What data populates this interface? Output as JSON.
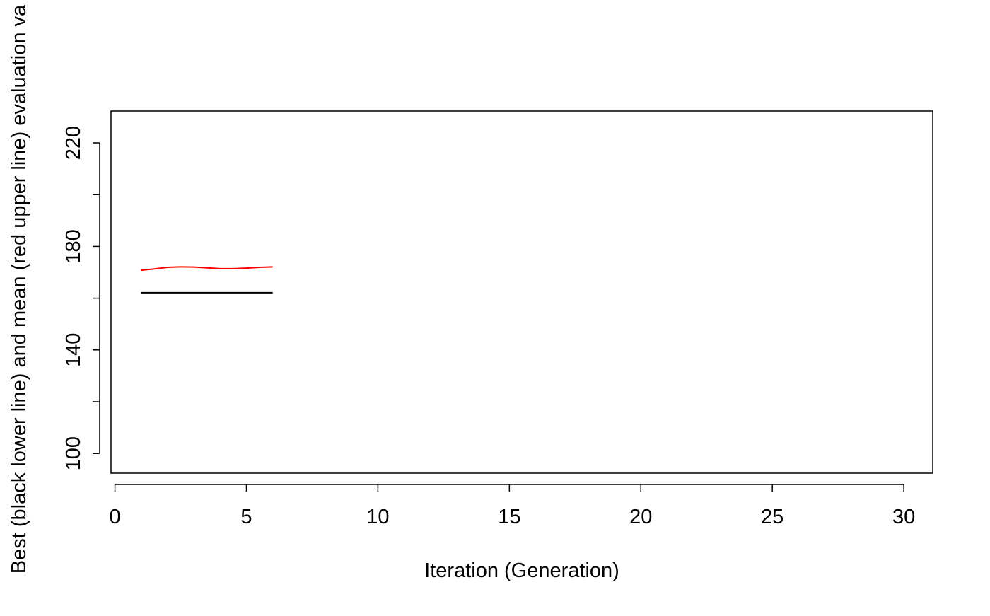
{
  "chart_data": {
    "type": "line",
    "title": "",
    "xlabel": "Iteration (Generation)",
    "ylabel": "Best (black lower line) and mean (red upper line) evaluation va",
    "xlim": [
      -0.15,
      31.1
    ],
    "ylim": [
      92.4,
      232.3
    ],
    "x_ticks": [
      0,
      5,
      10,
      15,
      20,
      25,
      30
    ],
    "y_ticks": [
      100,
      120,
      140,
      160,
      180,
      200,
      220
    ],
    "y_tick_labels": [
      "100",
      "140",
      "180",
      "220"
    ],
    "y_labeled_ticks": [
      100,
      140,
      180,
      220
    ],
    "grid": false,
    "legend": "none",
    "series": [
      {
        "role": "mean",
        "color": "#ff0000",
        "x": [
          1,
          1.5,
          2,
          2.5,
          3,
          3.5,
          4,
          4.5,
          5,
          5.5,
          6
        ],
        "y": [
          170.8,
          171.3,
          171.9,
          172.1,
          172.0,
          171.7,
          171.4,
          171.4,
          171.6,
          171.9,
          172.1
        ]
      },
      {
        "role": "best",
        "color": "#000000",
        "x": [
          1,
          2,
          3,
          4,
          5,
          6
        ],
        "y": [
          162.1,
          162.1,
          162.1,
          162.1,
          162.1,
          162.1
        ]
      }
    ]
  }
}
